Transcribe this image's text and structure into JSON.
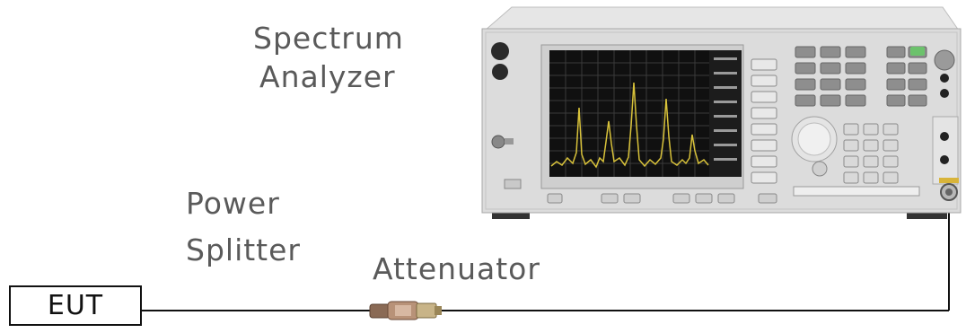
{
  "labels": {
    "spectrum": "Spectrum",
    "analyzer": "Analyzer",
    "power": "Power",
    "splitter": "Splitter",
    "attenuator": "Attenuator",
    "eut": "EUT"
  },
  "colors": {
    "text": "#5a5a5a",
    "line": "#111111",
    "trace": "#d8c23a",
    "screen": "#101010",
    "instrument_body": "#dcdcdc"
  }
}
